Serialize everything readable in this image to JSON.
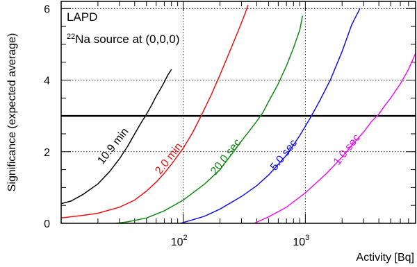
{
  "chart_data": {
    "type": "line",
    "title": "",
    "xlabel": "Activity [Bq]",
    "ylabel": "Significance (expected average)",
    "xscale": "log",
    "xlim": [
      10,
      8000
    ],
    "ylim": [
      0,
      6.2
    ],
    "grid": true,
    "annotation_lines": [
      "LAPD",
      "source at (0,0,0)"
    ],
    "annotation_isotope": {
      "mass": "22",
      "symbol": "Na"
    },
    "x_tick_labels": [
      {
        "value": 100,
        "base": "10",
        "exp": "2"
      },
      {
        "value": 1000,
        "base": "10",
        "exp": "3"
      }
    ],
    "y_ticks": [
      0,
      2,
      4,
      6
    ],
    "threshold": {
      "y": 3,
      "color": "#000000"
    },
    "series": [
      {
        "name": "10.9 min",
        "color": "#000000",
        "x": [
          10,
          12,
          15,
          20,
          25,
          30,
          35,
          40,
          45,
          50,
          55,
          60,
          65,
          70,
          75,
          80
        ],
        "y": [
          0.55,
          0.62,
          0.8,
          1.1,
          1.45,
          1.8,
          2.15,
          2.5,
          2.8,
          3.05,
          3.3,
          3.55,
          3.75,
          3.95,
          4.15,
          4.3
        ]
      },
      {
        "name": "2.0 min",
        "color": "#ee1111",
        "x": [
          10,
          15,
          20,
          30,
          40,
          50,
          60,
          70,
          80,
          100,
          120,
          140,
          170,
          200,
          240,
          280,
          320,
          340
        ],
        "y": [
          0.15,
          0.22,
          0.28,
          0.45,
          0.65,
          0.9,
          1.15,
          1.4,
          1.65,
          2.1,
          2.55,
          3.0,
          3.6,
          4.15,
          4.8,
          5.35,
          5.85,
          6.1
        ]
      },
      {
        "name": "20.0 sec",
        "color": "#118811",
        "x": [
          28,
          35,
          50,
          70,
          100,
          150,
          200,
          300,
          400,
          450,
          500,
          600,
          700,
          800,
          900,
          950
        ],
        "y": [
          0.0,
          0.04,
          0.15,
          0.35,
          0.65,
          1.1,
          1.5,
          2.3,
          2.85,
          3.1,
          3.4,
          3.9,
          4.4,
          4.9,
          5.4,
          5.8
        ]
      },
      {
        "name": "5.0 sec",
        "color": "#1111ee",
        "x": [
          95,
          120,
          150,
          200,
          300,
          400,
          500,
          700,
          900,
          1100,
          1300,
          1600,
          2000,
          2400,
          2800
        ],
        "y": [
          0.0,
          0.1,
          0.2,
          0.4,
          0.75,
          1.05,
          1.35,
          1.9,
          2.45,
          2.95,
          3.4,
          4.0,
          4.8,
          5.55,
          6.0
        ]
      },
      {
        "name": "1.0 sec",
        "color": "#ee11ee",
        "x": [
          380,
          500,
          700,
          1000,
          1500,
          2000,
          2500,
          3000,
          3500,
          4000,
          4500,
          5000,
          6000,
          7000,
          8000
        ],
        "y": [
          0.0,
          0.18,
          0.45,
          0.85,
          1.4,
          1.85,
          2.25,
          2.55,
          2.85,
          3.05,
          3.3,
          3.5,
          3.9,
          4.3,
          4.75
        ]
      }
    ],
    "curve_labels": [
      {
        "series": 0,
        "text": "10.9 min",
        "at_x": 28,
        "at_y": 2.1
      },
      {
        "series": 1,
        "text": "2.0 min",
        "at_x": 80,
        "at_y": 1.75
      },
      {
        "series": 2,
        "text": "20.0 sec",
        "at_x": 235,
        "at_y": 1.8
      },
      {
        "series": 3,
        "text": "5.0 sec",
        "at_x": 700,
        "at_y": 1.85
      },
      {
        "series": 4,
        "text": "1.0 sec",
        "at_x": 2300,
        "at_y": 2.0
      }
    ]
  }
}
